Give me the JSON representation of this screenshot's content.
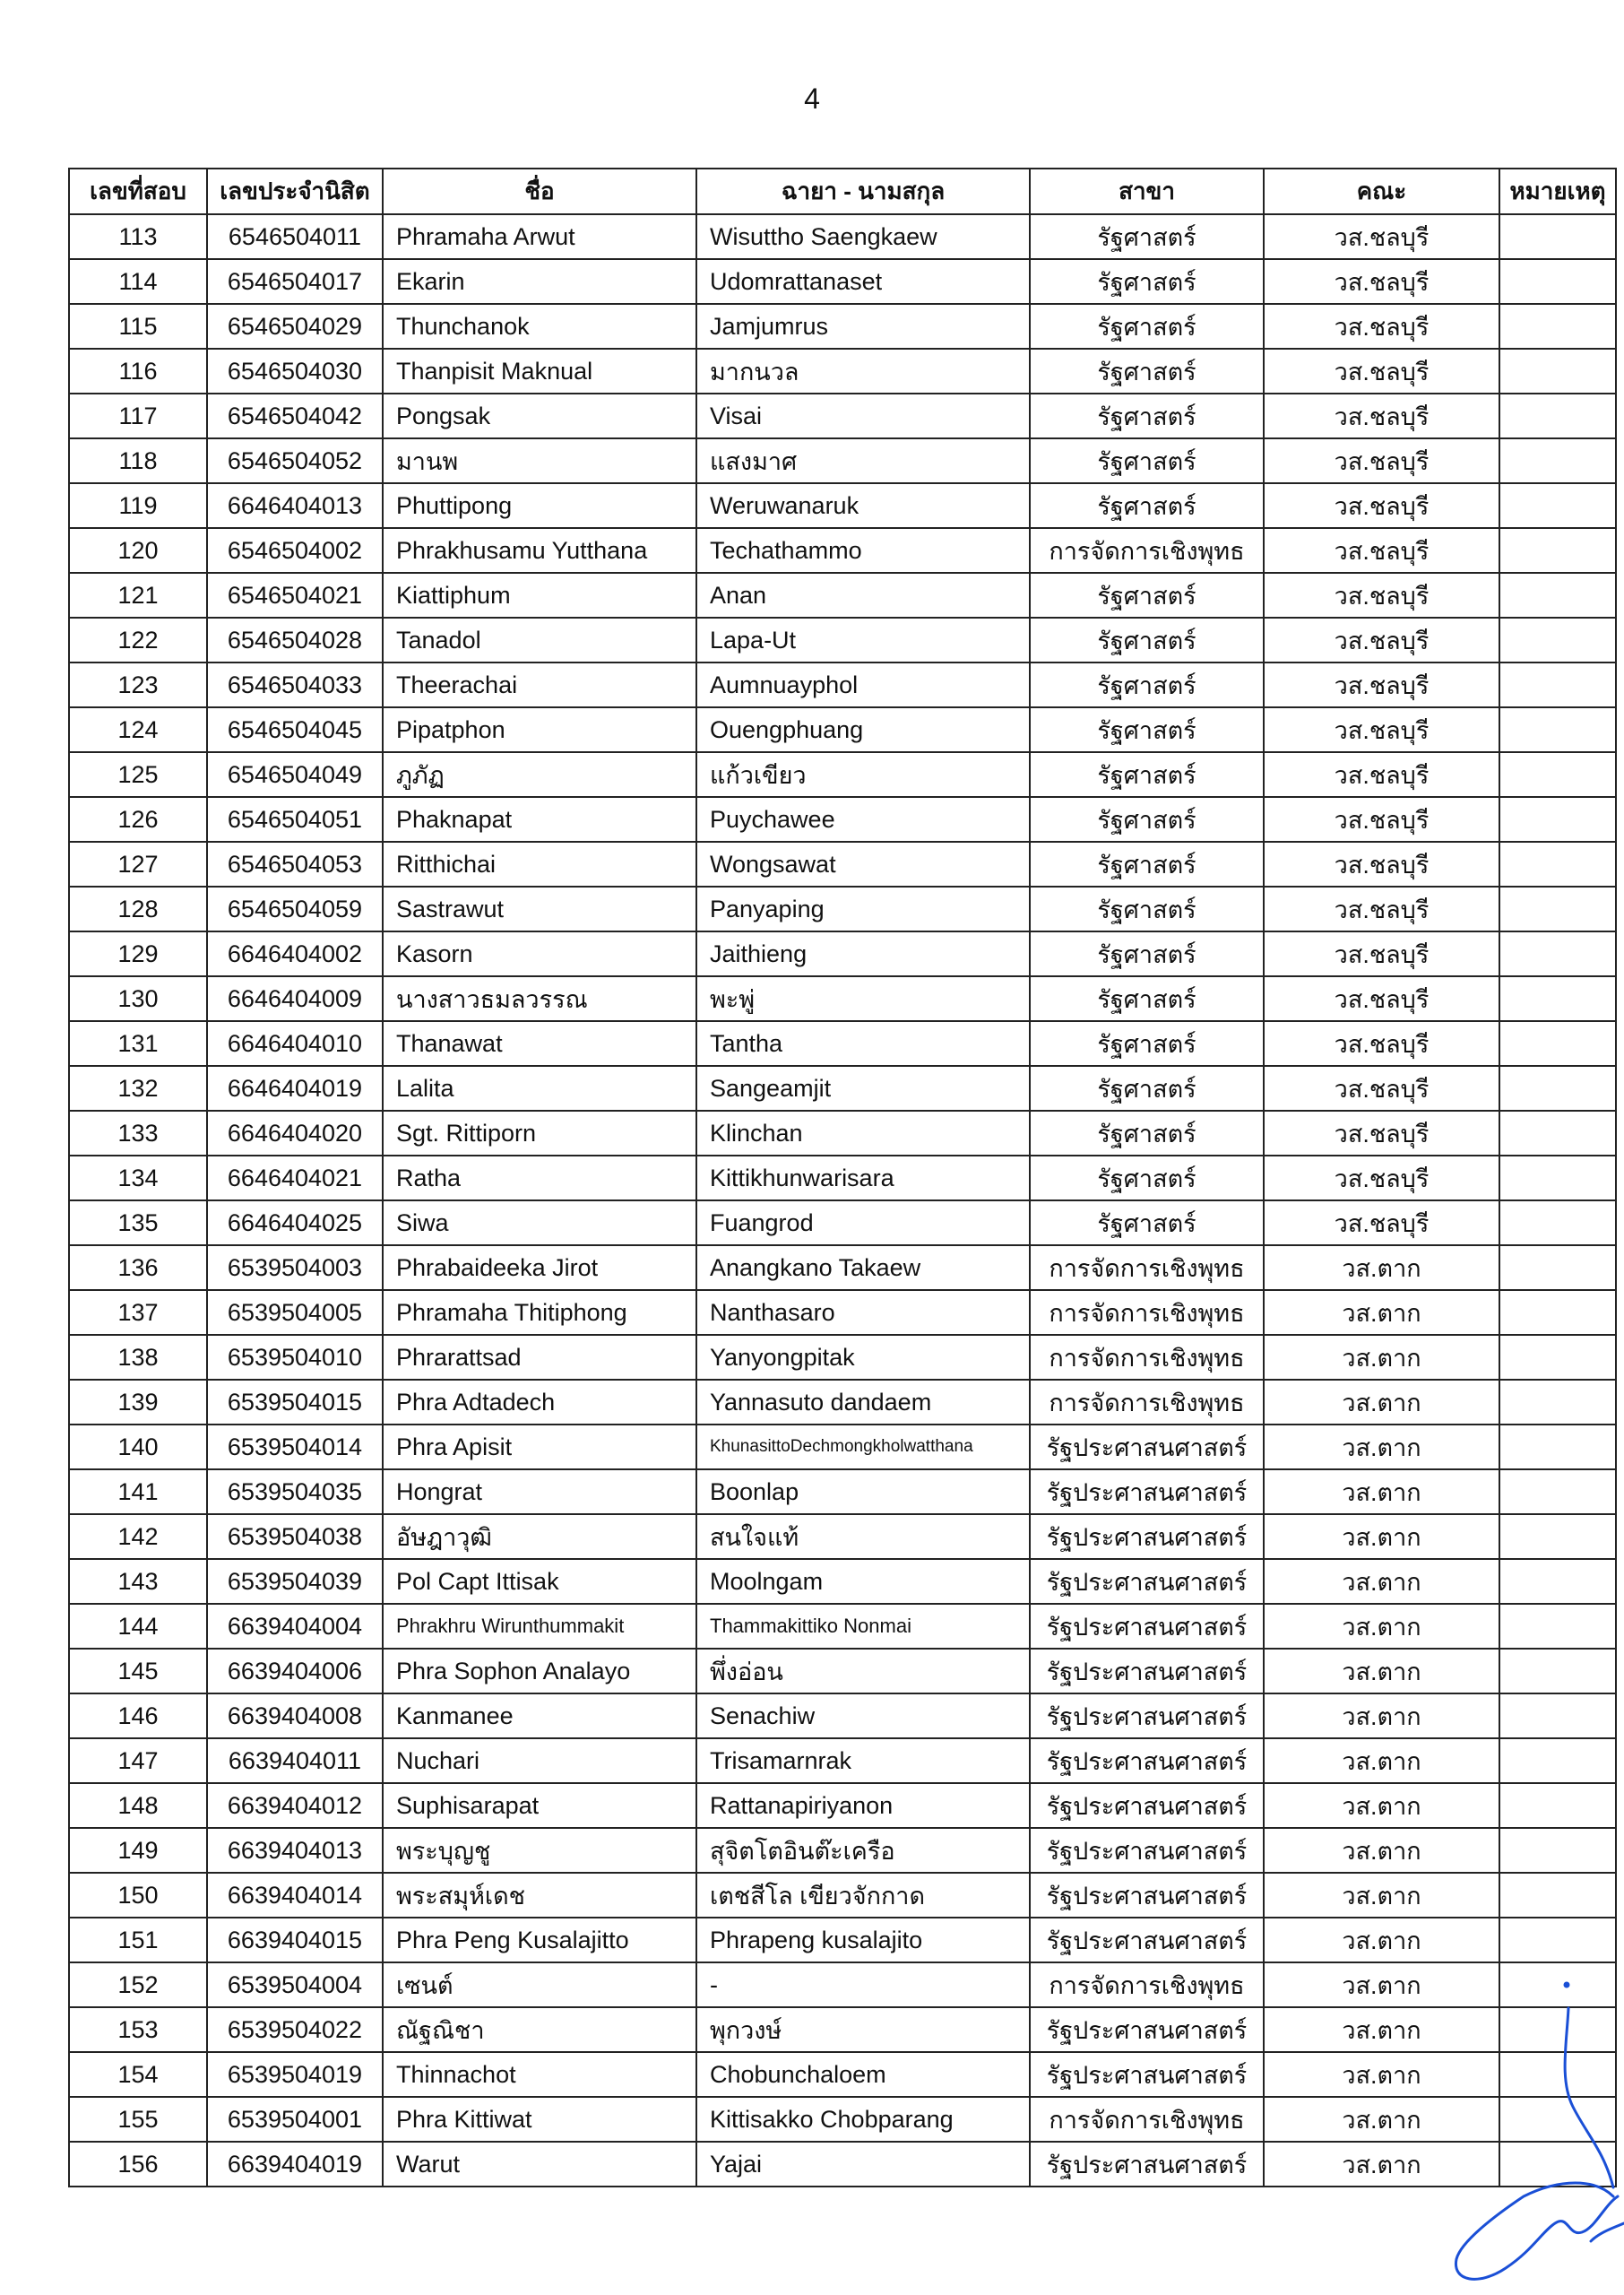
{
  "page_number": "4",
  "table": {
    "headers": [
      "เลขที่สอบ",
      "เลขประจำนิสิต",
      "ชื่อ",
      "ฉายา - นามสกุล",
      "สาขา",
      "คณะ",
      "หมายเหตุ"
    ],
    "rows": [
      [
        "113",
        "6546504011",
        "Phramaha Arwut",
        "Wisuttho Saengkaew",
        "รัฐศาสตร์",
        "วส.ชลบุรี",
        ""
      ],
      [
        "114",
        "6546504017",
        "Ekarin",
        "Udomrattanaset",
        "รัฐศาสตร์",
        "วส.ชลบุรี",
        ""
      ],
      [
        "115",
        "6546504029",
        "Thunchanok",
        "Jamjumrus",
        "รัฐศาสตร์",
        "วส.ชลบุรี",
        ""
      ],
      [
        "116",
        "6546504030",
        "Thanpisit Maknual",
        "มากนวล",
        "รัฐศาสตร์",
        "วส.ชลบุรี",
        ""
      ],
      [
        "117",
        "6546504042",
        "Pongsak",
        "Visai",
        "รัฐศาสตร์",
        "วส.ชลบุรี",
        ""
      ],
      [
        "118",
        "6546504052",
        "มานพ",
        "แสงมาศ",
        "รัฐศาสตร์",
        "วส.ชลบุรี",
        ""
      ],
      [
        "119",
        "6646404013",
        "Phuttipong",
        "Weruwanaruk",
        "รัฐศาสตร์",
        "วส.ชลบุรี",
        ""
      ],
      [
        "120",
        "6546504002",
        "Phrakhusamu Yutthana",
        "Techathammo",
        "การจัดการเชิงพุทธ",
        "วส.ชลบุรี",
        ""
      ],
      [
        "121",
        "6546504021",
        "Kiattiphum",
        "Anan",
        "รัฐศาสตร์",
        "วส.ชลบุรี",
        ""
      ],
      [
        "122",
        "6546504028",
        "Tanadol",
        "Lapa-Ut",
        "รัฐศาสตร์",
        "วส.ชลบุรี",
        ""
      ],
      [
        "123",
        "6546504033",
        "Theerachai",
        "Aumnuayphol",
        "รัฐศาสตร์",
        "วส.ชลบุรี",
        ""
      ],
      [
        "124",
        "6546504045",
        "Pipatphon",
        "Ouengphuang",
        "รัฐศาสตร์",
        "วส.ชลบุรี",
        ""
      ],
      [
        "125",
        "6546504049",
        "ภูภัฏ",
        "แก้วเขียว",
        "รัฐศาสตร์",
        "วส.ชลบุรี",
        ""
      ],
      [
        "126",
        "6546504051",
        "Phaknapat",
        "Puychawee",
        "รัฐศาสตร์",
        "วส.ชลบุรี",
        ""
      ],
      [
        "127",
        "6546504053",
        "Ritthichai",
        "Wongsawat",
        "รัฐศาสตร์",
        "วส.ชลบุรี",
        ""
      ],
      [
        "128",
        "6546504059",
        "Sastrawut",
        "Panyaping",
        "รัฐศาสตร์",
        "วส.ชลบุรี",
        ""
      ],
      [
        "129",
        "6646404002",
        "Kasorn",
        "Jaithieng",
        "รัฐศาสตร์",
        "วส.ชลบุรี",
        ""
      ],
      [
        "130",
        "6646404009",
        "นางสาวธมลวรรณ",
        "พะพู่",
        "รัฐศาสตร์",
        "วส.ชลบุรี",
        ""
      ],
      [
        "131",
        "6646404010",
        "Thanawat",
        "Tantha",
        "รัฐศาสตร์",
        "วส.ชลบุรี",
        ""
      ],
      [
        "132",
        "6646404019",
        "Lalita",
        "Sangeamjit",
        "รัฐศาสตร์",
        "วส.ชลบุรี",
        ""
      ],
      [
        "133",
        "6646404020",
        "Sgt. Rittiporn",
        "Klinchan",
        "รัฐศาสตร์",
        "วส.ชลบุรี",
        ""
      ],
      [
        "134",
        "6646404021",
        "Ratha",
        "Kittikhunwarisara",
        "รัฐศาสตร์",
        "วส.ชลบุรี",
        ""
      ],
      [
        "135",
        "6646404025",
        "Siwa",
        "Fuangrod",
        "รัฐศาสตร์",
        "วส.ชลบุรี",
        ""
      ],
      [
        "136",
        "6539504003",
        "Phrabaideeka Jirot",
        "Anangkano Takaew",
        "การจัดการเชิงพุทธ",
        "วส.ตาก",
        ""
      ],
      [
        "137",
        "6539504005",
        "Phramaha Thitiphong",
        "Nanthasaro",
        "การจัดการเชิงพุทธ",
        "วส.ตาก",
        ""
      ],
      [
        "138",
        "6539504010",
        "Phrarattsad",
        "Yanyongpitak",
        "การจัดการเชิงพุทธ",
        "วส.ตาก",
        ""
      ],
      [
        "139",
        "6539504015",
        "Phra Adtadech",
        "Yannasuto dandaem",
        "การจัดการเชิงพุทธ",
        "วส.ตาก",
        ""
      ],
      [
        "140",
        "6539504014",
        "Phra Apisit",
        "KhunasittoDechmongkholwatthana",
        "รัฐประศาสนศาสตร์",
        "วส.ตาก",
        ""
      ],
      [
        "141",
        "6539504035",
        "Hongrat",
        "Boonlap",
        "รัฐประศาสนศาสตร์",
        "วส.ตาก",
        ""
      ],
      [
        "142",
        "6539504038",
        "อัษฎาวุฒิ",
        "สนใจแท้",
        "รัฐประศาสนศาสตร์",
        "วส.ตาก",
        ""
      ],
      [
        "143",
        "6539504039",
        "Pol Capt Ittisak",
        "Moolngam",
        "รัฐประศาสนศาสตร์",
        "วส.ตาก",
        ""
      ],
      [
        "144",
        "6639404004",
        "Phrakhru Wirunthummakit",
        "Thammakittiko Nonmai",
        "รัฐประศาสนศาสตร์",
        "วส.ตาก",
        ""
      ],
      [
        "145",
        "6639404006",
        "Phra Sophon Analayo",
        "พึ่งอ่อน",
        "รัฐประศาสนศาสตร์",
        "วส.ตาก",
        ""
      ],
      [
        "146",
        "6639404008",
        "Kanmanee",
        "Senachiw",
        "รัฐประศาสนศาสตร์",
        "วส.ตาก",
        ""
      ],
      [
        "147",
        "6639404011",
        "Nuchari",
        "Trisamarnrak",
        "รัฐประศาสนศาสตร์",
        "วส.ตาก",
        ""
      ],
      [
        "148",
        "6639404012",
        "Suphisarapat",
        "Rattanapiriyanon",
        "รัฐประศาสนศาสตร์",
        "วส.ตาก",
        ""
      ],
      [
        "149",
        "6639404013",
        "พระบุญชู",
        "สุจิตโตอินต๊ะเครือ",
        "รัฐประศาสนศาสตร์",
        "วส.ตาก",
        ""
      ],
      [
        "150",
        "6639404014",
        "พระสมุห์เดช",
        "เตชสีโล เขียวจักกาด",
        "รัฐประศาสนศาสตร์",
        "วส.ตาก",
        ""
      ],
      [
        "151",
        "6639404015",
        "Phra Peng Kusalajitto",
        "Phrapeng kusalajito",
        "รัฐประศาสนศาสตร์",
        "วส.ตาก",
        ""
      ],
      [
        "152",
        "6539504004",
        "เซนต์",
        "-",
        "การจัดการเชิงพุทธ",
        "วส.ตาก",
        ""
      ],
      [
        "153",
        "6539504022",
        "ณัฐณิชา",
        "พุกวงษ์",
        "รัฐประศาสนศาสตร์",
        "วส.ตาก",
        ""
      ],
      [
        "154",
        "6539504019",
        "Thinnachot",
        "Chobunchaloem",
        "รัฐประศาสนศาสตร์",
        "วส.ตาก",
        ""
      ],
      [
        "155",
        "6539504001",
        "Phra Kittiwat",
        "Kittisakko Chobparang",
        "การจัดการเชิงพุทธ",
        "วส.ตาก",
        ""
      ],
      [
        "156",
        "6639404019",
        "Warut",
        "Yajai",
        "รัฐประศาสนศาสตร์",
        "วส.ตาก",
        ""
      ]
    ]
  },
  "signature_color": "#1a4fd6"
}
